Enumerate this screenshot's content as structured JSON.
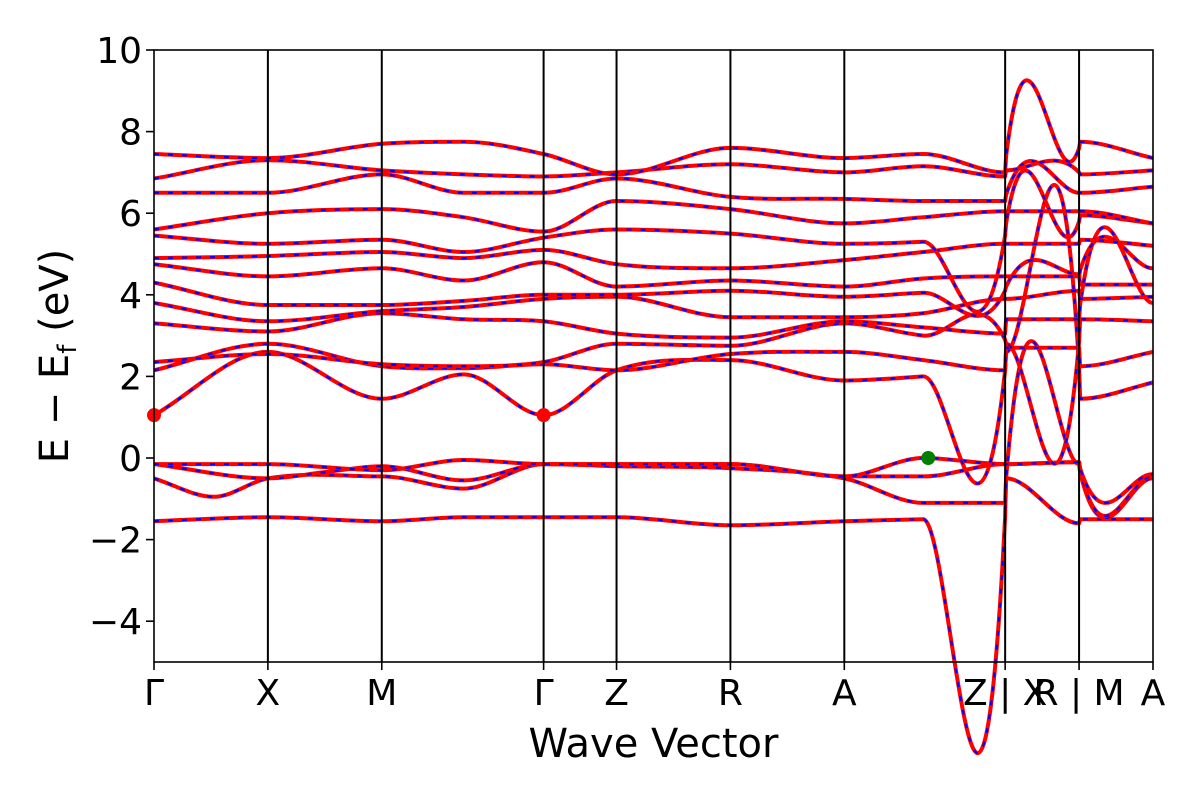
{
  "chart_data": {
    "type": "line",
    "xlabel": "Wave Vector",
    "ylabel": "E − E",
    "ylabel_sub": "f",
    "ylabel_unit": " (eV)",
    "ylim": [
      -5,
      10
    ],
    "yticks": [
      -4,
      -2,
      0,
      2,
      4,
      6,
      8,
      10
    ],
    "ytick_labels": [
      "−4",
      "−2",
      "0",
      "2",
      "4",
      "6",
      "8",
      "10"
    ],
    "xlim": [
      0,
      10
    ],
    "kpoints": [
      {
        "label": "Γ",
        "x": 0.0
      },
      {
        "label": "X",
        "x": 1.14
      },
      {
        "label": "M",
        "x": 2.28
      },
      {
        "label": "Γ",
        "x": 3.9
      },
      {
        "label": "Z",
        "x": 4.63
      },
      {
        "label": "R",
        "x": 5.77
      },
      {
        "label": "A",
        "x": 6.91
      },
      {
        "label": "Z | X",
        "x": 8.52
      },
      {
        "label": "R | M",
        "x": 9.26
      },
      {
        "label": "A",
        "x": 10.0
      }
    ],
    "line_colors": {
      "spin_up": "#ff0000",
      "spin_down": "#0000ff",
      "kpath": "#000000"
    },
    "bands": [
      {
        "name": "b1",
        "x": [
          0,
          1.14,
          2.28,
          3.1,
          3.9,
          4.63,
          5.77,
          6.91,
          7.7,
          8.52,
          8.53,
          9.26,
          9.27,
          10
        ],
        "y": [
          -1.55,
          -1.45,
          -1.55,
          -1.45,
          -1.45,
          -1.45,
          -1.65,
          -1.55,
          -1.5,
          -1.45,
          -0.5,
          -1.6,
          -1.5,
          -1.5
        ]
      },
      {
        "name": "b2",
        "x": [
          0,
          0.6,
          1.14,
          2.28,
          3.1,
          3.9,
          4.63,
          5.77,
          6.91,
          7.7,
          8.52,
          8.53,
          9.26,
          9.27,
          10
        ],
        "y": [
          -0.5,
          -0.95,
          -0.5,
          -0.45,
          -0.75,
          -0.15,
          -0.2,
          -0.25,
          -0.5,
          -1.1,
          -1.1,
          -0.5,
          -0.15,
          -0.35,
          -0.5
        ]
      },
      {
        "name": "b3",
        "x": [
          0,
          1.14,
          1.7,
          2.28,
          3.1,
          3.9,
          4.63,
          5.77,
          6.91,
          7.7,
          8.52,
          8.53,
          9.26,
          9.27,
          10
        ],
        "y": [
          -0.15,
          -0.5,
          -0.35,
          -0.2,
          -0.55,
          -0.15,
          -0.15,
          -0.15,
          -0.45,
          -0.45,
          -0.15,
          -0.15,
          -0.1,
          -0.3,
          -0.45
        ]
      },
      {
        "name": "b4",
        "x": [
          0,
          1.14,
          2.28,
          3.1,
          3.9,
          4.63,
          5.77,
          6.91,
          7.7,
          8.52,
          8.53,
          9.26,
          9.27,
          10
        ],
        "y": [
          -0.15,
          -0.15,
          -0.3,
          -0.05,
          -0.15,
          -0.15,
          -0.15,
          -0.45,
          0.0,
          -0.15,
          -0.15,
          -0.1,
          -0.25,
          -0.4
        ]
      },
      {
        "name": "b5",
        "x": [
          0,
          1.14,
          2.28,
          3.1,
          3.9,
          4.63,
          5.77,
          6.91,
          7.7,
          8.52,
          8.53,
          9.26,
          9.27,
          10
        ],
        "y": [
          1.05,
          2.6,
          1.45,
          2.05,
          1.05,
          2.15,
          2.4,
          1.9,
          2.0,
          2.15,
          2.6,
          2.25,
          1.45,
          1.85
        ]
      },
      {
        "name": "b6",
        "x": [
          0,
          1.14,
          2.28,
          3.1,
          3.9,
          4.63,
          5.77,
          6.91,
          7.7,
          8.52,
          8.53,
          9.26,
          9.27,
          10
        ],
        "y": [
          2.15,
          2.8,
          2.25,
          2.2,
          2.3,
          2.15,
          2.55,
          2.6,
          2.4,
          2.15,
          2.7,
          2.7,
          2.25,
          2.6
        ]
      },
      {
        "name": "b7",
        "x": [
          0,
          1.14,
          2.28,
          3.1,
          3.9,
          4.63,
          5.77,
          6.91,
          7.7,
          8.52,
          8.53,
          9.26,
          9.27,
          10
        ],
        "y": [
          2.35,
          2.55,
          2.3,
          2.25,
          2.35,
          2.8,
          2.75,
          3.3,
          3.0,
          2.9,
          2.8,
          2.85,
          3.4,
          3.35
        ]
      },
      {
        "name": "b8",
        "x": [
          0,
          1.14,
          2.28,
          3.1,
          3.9,
          4.63,
          5.77,
          6.91,
          7.7,
          8.52,
          8.53,
          9.26,
          9.27,
          10
        ],
        "y": [
          3.3,
          3.1,
          3.55,
          3.4,
          3.35,
          3.05,
          2.95,
          3.35,
          3.2,
          3.05,
          3.4,
          3.4,
          3.75,
          3.8
        ]
      },
      {
        "name": "b9",
        "x": [
          0,
          1.14,
          2.28,
          3.1,
          3.9,
          4.63,
          5.77,
          6.91,
          7.7,
          8.52,
          8.53,
          9.26,
          9.27,
          10
        ],
        "y": [
          3.8,
          3.35,
          3.6,
          3.7,
          3.9,
          3.95,
          3.45,
          3.45,
          3.55,
          3.9,
          3.9,
          4.1,
          3.9,
          3.95
        ]
      },
      {
        "name": "b10",
        "x": [
          0,
          1.14,
          2.28,
          3.1,
          3.9,
          4.63,
          5.77,
          6.91,
          7.7,
          8.52,
          8.53,
          9.26,
          9.27,
          10
        ],
        "y": [
          4.3,
          3.75,
          3.75,
          3.85,
          4.0,
          4.0,
          4.1,
          3.95,
          4.05,
          4.1,
          4.2,
          4.5,
          4.25,
          4.25
        ]
      },
      {
        "name": "b11",
        "x": [
          0,
          1.14,
          2.28,
          3.1,
          3.9,
          4.63,
          5.77,
          6.91,
          7.7,
          8.52,
          8.53,
          9.26,
          9.27,
          10
        ],
        "y": [
          4.75,
          4.45,
          4.65,
          4.35,
          4.8,
          4.2,
          4.35,
          4.2,
          4.4,
          4.45,
          4.45,
          4.45,
          4.6,
          4.65
        ]
      },
      {
        "name": "b12",
        "x": [
          0,
          1.14,
          2.28,
          3.1,
          3.9,
          4.63,
          5.77,
          6.91,
          7.7,
          8.52,
          8.53,
          9.26,
          9.27,
          10
        ],
        "y": [
          4.9,
          4.95,
          5.05,
          4.9,
          5.1,
          4.75,
          4.65,
          4.85,
          5.05,
          5.25,
          5.25,
          5.25,
          5.35,
          5.2
        ]
      },
      {
        "name": "b13",
        "x": [
          0,
          1.14,
          2.28,
          3.1,
          3.9,
          4.63,
          5.77,
          6.91,
          7.7,
          8.52,
          8.53,
          9.26,
          9.27,
          10
        ],
        "y": [
          5.45,
          5.25,
          5.35,
          5.05,
          5.4,
          5.6,
          5.5,
          5.25,
          5.3,
          5.45,
          5.75,
          5.8,
          5.95,
          5.75
        ]
      },
      {
        "name": "b14",
        "x": [
          0,
          1.14,
          2.28,
          3.1,
          3.9,
          4.63,
          5.77,
          6.91,
          7.7,
          8.52,
          8.53,
          9.26,
          9.27,
          10
        ],
        "y": [
          5.6,
          6.0,
          6.1,
          5.9,
          5.55,
          6.3,
          6.1,
          5.75,
          5.9,
          6.05,
          6.05,
          6.05,
          6.05,
          5.75
        ]
      },
      {
        "name": "b15",
        "x": [
          0,
          1.14,
          2.28,
          3.1,
          3.9,
          4.63,
          5.77,
          6.91,
          7.7,
          8.52,
          8.53,
          9.26,
          9.27,
          10
        ],
        "y": [
          6.5,
          6.5,
          6.95,
          6.5,
          6.5,
          6.85,
          6.4,
          6.35,
          6.3,
          6.3,
          6.45,
          6.5,
          6.5,
          6.65
        ]
      },
      {
        "name": "b16",
        "x": [
          0,
          1.14,
          2.28,
          3.1,
          3.9,
          4.63,
          5.77,
          6.91,
          7.7,
          8.52,
          8.53,
          9.26,
          9.27,
          10
        ],
        "y": [
          6.85,
          7.3,
          7.05,
          6.95,
          6.9,
          7.0,
          7.2,
          7.0,
          7.15,
          6.9,
          7.05,
          7.0,
          6.95,
          7.05
        ]
      },
      {
        "name": "b17",
        "x": [
          0,
          1.14,
          2.28,
          3.1,
          3.9,
          4.63,
          5.77,
          6.91,
          7.7,
          8.52,
          8.53,
          9.26,
          9.27,
          10
        ],
        "y": [
          7.45,
          7.35,
          7.7,
          7.75,
          7.45,
          6.95,
          7.6,
          7.35,
          7.45,
          7.0,
          7.4,
          7.6,
          7.75,
          7.35
        ]
      }
    ],
    "markers": [
      {
        "x": 0.0,
        "y": 1.05,
        "color": "#ff0000"
      },
      {
        "x": 3.9,
        "y": 1.05,
        "color": "#ff0000"
      },
      {
        "x": 7.75,
        "y": 0.0,
        "color": "#008000"
      }
    ]
  }
}
